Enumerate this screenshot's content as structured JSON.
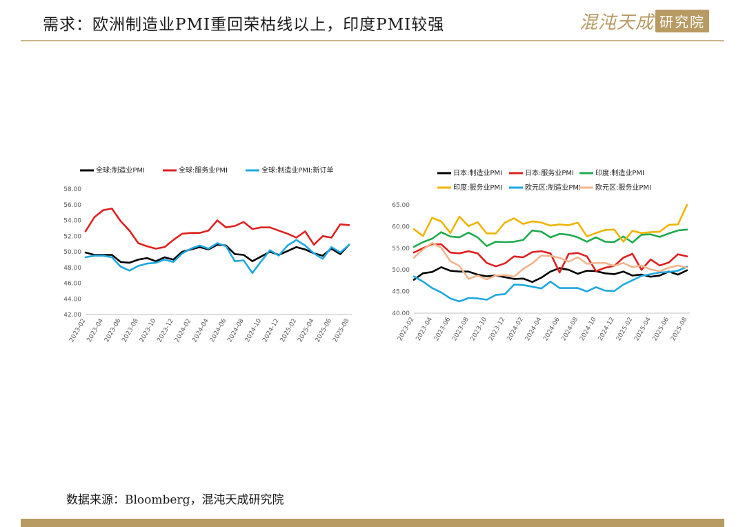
{
  "header": {
    "title": "需求：欧洲制造业PMI重回荣枯线以上，印度PMI较强",
    "logo_text": "混沌天成",
    "logo_box": "研究院",
    "accent_color": "#b89a63"
  },
  "footer": {
    "source": "数据来源：Bloomberg，混沌天成研究院"
  },
  "chart_data": [
    {
      "type": "line",
      "title": "",
      "xlabel": "",
      "ylabel": "",
      "ylim": [
        42,
        58
      ],
      "yticks": [
        "42.00",
        "44.00",
        "46.00",
        "48.00",
        "50.00",
        "52.00",
        "54.00",
        "56.00",
        "58.00"
      ],
      "xticks": [
        "2023-02",
        "2023-04",
        "2023-06",
        "2023-08",
        "2023-10",
        "2023-12",
        "2024-02",
        "2024-04",
        "2024-06",
        "2024-08",
        "2024-10",
        "2024-12",
        "2025-02",
        "2025-04",
        "2025-06",
        "2025-08"
      ],
      "x_count": 31,
      "legend_position": "top",
      "series": [
        {
          "name": "全球:制造业PMI",
          "color": "#000000",
          "values": [
            49.9,
            49.6,
            49.6,
            49.6,
            48.7,
            48.6,
            49.0,
            49.2,
            48.8,
            49.3,
            49.0,
            50.0,
            50.3,
            50.6,
            50.3,
            50.9,
            50.8,
            49.7,
            49.6,
            48.8,
            49.4,
            50.0,
            49.6,
            50.1,
            50.6,
            50.3,
            49.8,
            49.5,
            50.4,
            49.7,
            50.9
          ]
        },
        {
          "name": "全球:服务业PMI",
          "color": "#e02020",
          "values": [
            52.6,
            54.4,
            55.3,
            55.5,
            53.9,
            52.7,
            51.1,
            50.7,
            50.4,
            50.6,
            51.5,
            52.3,
            52.4,
            52.4,
            52.7,
            54.0,
            53.1,
            53.3,
            53.8,
            52.9,
            53.1,
            53.1,
            52.7,
            52.3,
            51.8,
            52.6,
            50.9,
            52.0,
            51.8,
            53.5,
            53.4
          ]
        },
        {
          "name": "全球:制造业PMI:新订单",
          "color": "#1ea8e0",
          "values": [
            49.3,
            49.5,
            49.5,
            49.3,
            48.1,
            47.6,
            48.2,
            48.5,
            48.6,
            49.0,
            48.7,
            49.8,
            50.4,
            50.8,
            50.4,
            51.1,
            50.7,
            48.8,
            48.9,
            47.3,
            48.8,
            50.2,
            49.5,
            50.8,
            51.5,
            50.8,
            49.8,
            49.1,
            50.6,
            49.9,
            50.9
          ]
        }
      ]
    },
    {
      "type": "line",
      "title": "",
      "xlabel": "",
      "ylabel": "",
      "ylim": [
        40,
        65
      ],
      "yticks": [
        "40.00",
        "45.00",
        "50.00",
        "55.00",
        "60.00",
        "65.00"
      ],
      "xticks": [
        "2023-02",
        "2023-04",
        "2023-06",
        "2023-08",
        "2023-10",
        "2023-12",
        "2024-02",
        "2024-04",
        "2024-06",
        "2024-08",
        "2024-10",
        "2024-12",
        "2025-02",
        "2025-04",
        "2025-06",
        "2025-08"
      ],
      "x_count": 31,
      "legend_position": "top",
      "series": [
        {
          "name": "日本:制造业PMI",
          "color": "#000000",
          "values": [
            47.7,
            49.2,
            49.5,
            50.6,
            49.8,
            49.6,
            49.6,
            48.9,
            48.5,
            48.7,
            48.3,
            47.9,
            48.0,
            47.2,
            48.2,
            49.6,
            50.4,
            50.0,
            49.1,
            49.8,
            49.7,
            49.2,
            49.0,
            49.6,
            48.7,
            48.9,
            48.4,
            48.7,
            49.6,
            48.9,
            49.9
          ]
        },
        {
          "name": "日本:服务业PMI",
          "color": "#e02020",
          "values": [
            54.0,
            55.0,
            55.9,
            55.9,
            54.0,
            53.8,
            54.3,
            53.8,
            51.6,
            50.8,
            51.5,
            53.1,
            52.9,
            54.1,
            54.3,
            53.8,
            49.4,
            53.7,
            53.9,
            53.1,
            49.7,
            50.5,
            50.9,
            52.8,
            53.7,
            50.0,
            52.4,
            51.0,
            51.7,
            53.6,
            53.1
          ]
        },
        {
          "name": "印度:制造业PMI",
          "color": "#1fab4e",
          "values": [
            55.3,
            56.4,
            57.2,
            58.7,
            57.7,
            57.5,
            58.6,
            57.5,
            55.5,
            56.5,
            56.4,
            56.5,
            56.9,
            59.1,
            58.8,
            57.5,
            58.3,
            58.1,
            57.5,
            56.5,
            57.5,
            56.5,
            56.4,
            57.7,
            56.3,
            58.1,
            58.2,
            57.6,
            58.4,
            59.1,
            59.3
          ]
        },
        {
          "name": "印度:服务业PMI",
          "color": "#f0b400",
          "values": [
            59.4,
            57.8,
            62.0,
            61.2,
            58.5,
            62.3,
            60.1,
            61.0,
            58.4,
            58.4,
            60.9,
            61.9,
            60.6,
            61.2,
            60.9,
            60.2,
            60.5,
            60.3,
            60.9,
            57.7,
            58.5,
            59.2,
            59.3,
            56.5,
            59.0,
            58.5,
            58.7,
            58.8,
            60.4,
            60.5,
            65.0
          ]
        },
        {
          "name": "欧元区:制造业PMI",
          "color": "#1ea8e0",
          "values": [
            48.5,
            47.3,
            45.8,
            44.8,
            43.4,
            42.7,
            43.5,
            43.4,
            43.1,
            44.2,
            44.4,
            46.6,
            46.5,
            46.1,
            45.7,
            47.3,
            45.8,
            45.8,
            45.8,
            45.0,
            46.0,
            45.2,
            45.1,
            46.6,
            47.6,
            48.6,
            49.0,
            49.4,
            49.5,
            49.8,
            50.7
          ]
        },
        {
          "name": "欧元区:服务业PMI",
          "color": "#f2b48c",
          "values": [
            52.8,
            54.7,
            56.2,
            55.1,
            52.0,
            50.9,
            47.9,
            48.7,
            47.8,
            48.7,
            48.8,
            48.4,
            50.2,
            51.5,
            53.3,
            53.2,
            52.8,
            51.9,
            52.9,
            51.4,
            51.6,
            51.6,
            50.9,
            51.6,
            50.6,
            51.0,
            50.1,
            49.7,
            50.5,
            51.0,
            50.5
          ]
        }
      ]
    }
  ]
}
